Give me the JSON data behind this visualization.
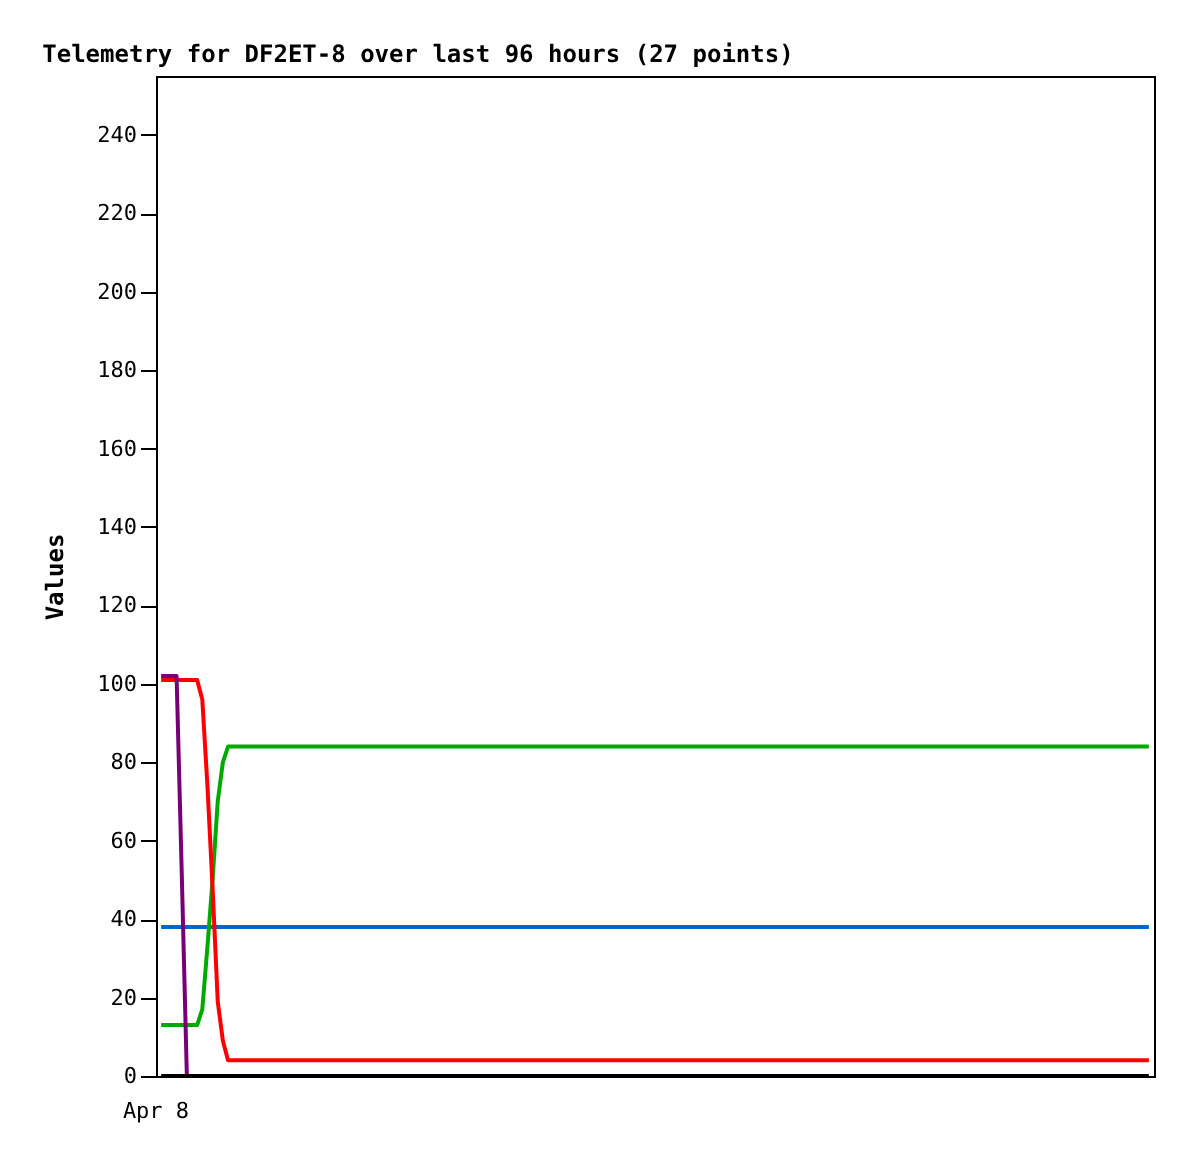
{
  "chart_data": {
    "type": "line",
    "title": "Telemetry for DF2ET-8 over last 96 hours (27 points)",
    "ylabel": "Values",
    "annotations": [
      "Apr 8"
    ],
    "categories": [
      null,
      null,
      null,
      null,
      null,
      null,
      null,
      null,
      null,
      null,
      null,
      null,
      null,
      null,
      null,
      null,
      null,
      null,
      null,
      null,
      null,
      null,
      null,
      null,
      null,
      null,
      null,
      null,
      null,
      null,
      null,
      null,
      null,
      null,
      null,
      null,
      null,
      null,
      null,
      null,
      null,
      null,
      null,
      null,
      null,
      null,
      null,
      null,
      null,
      null,
      null,
      null,
      null,
      null,
      null,
      null,
      null,
      null,
      null,
      null,
      null,
      null,
      null,
      null,
      null,
      null,
      null,
      null,
      null,
      null,
      null,
      null,
      null,
      null,
      null,
      null,
      null,
      null,
      null,
      null,
      null,
      null,
      null,
      null,
      null,
      null,
      null,
      null,
      null,
      null,
      null,
      null,
      null,
      null,
      null,
      null,
      null,
      null,
      null,
      null,
      null,
      null,
      null,
      null,
      null,
      null,
      null,
      null,
      null,
      null,
      null,
      null,
      null,
      null,
      null,
      null,
      null,
      null,
      null,
      null,
      null,
      null,
      null,
      null,
      null,
      null,
      null,
      null,
      null,
      null,
      null,
      null,
      null,
      null,
      null,
      null,
      null,
      null,
      null,
      null,
      null,
      null,
      null,
      null,
      null,
      null,
      null,
      null,
      null,
      null,
      null,
      null,
      null,
      null,
      null,
      null,
      null,
      null,
      null,
      null,
      null,
      null,
      null,
      null,
      null,
      null,
      null,
      null,
      null,
      null,
      null,
      null,
      null,
      null,
      null,
      null,
      null,
      null,
      null,
      null,
      null,
      null,
      null,
      null,
      null,
      null,
      null,
      null,
      null,
      null,
      null,
      null,
      null
    ],
    "ylim": [
      0,
      255
    ],
    "yticks": [
      0,
      20,
      40,
      60,
      80,
      100,
      120,
      140,
      160,
      180,
      200,
      220,
      240
    ],
    "series": [
      {
        "color": "#0066cc",
        "values": [
          38,
          38,
          38,
          38,
          38,
          38,
          38,
          38,
          38,
          38,
          38,
          38,
          38,
          38,
          38,
          38,
          38,
          38,
          38,
          38,
          38,
          38,
          38,
          38,
          38,
          38,
          38,
          38,
          38,
          38,
          38,
          38,
          38,
          38,
          38,
          38,
          38,
          38,
          38,
          38,
          38,
          38,
          38,
          38,
          38,
          38,
          38,
          38,
          38,
          38,
          38,
          38,
          38,
          38,
          38,
          38,
          38,
          38,
          38,
          38,
          38,
          38,
          38,
          38,
          38,
          38,
          38,
          38,
          38,
          38,
          38,
          38,
          38,
          38,
          38,
          38,
          38,
          38,
          38,
          38,
          38,
          38,
          38,
          38,
          38,
          38,
          38,
          38,
          38,
          38,
          38,
          38,
          38,
          38,
          38,
          38,
          38,
          38,
          38,
          38,
          38,
          38,
          38,
          38,
          38,
          38,
          38,
          38,
          38,
          38,
          38,
          38,
          38,
          38,
          38,
          38,
          38,
          38,
          38,
          38,
          38,
          38,
          38,
          38,
          38,
          38,
          38,
          38,
          38,
          38,
          38,
          38,
          38,
          38,
          38,
          38,
          38,
          38,
          38,
          38,
          38,
          38,
          38,
          38,
          38,
          38,
          38,
          38,
          38,
          38,
          38,
          38,
          38,
          38,
          38,
          38,
          38,
          38,
          38,
          38,
          38,
          38,
          38,
          38,
          38,
          38,
          38,
          38,
          38,
          38,
          38,
          38,
          38,
          38,
          38,
          38,
          38,
          38,
          38,
          38,
          38,
          38,
          38,
          38,
          38,
          38,
          38,
          38,
          38,
          38,
          38,
          38,
          38
        ]
      },
      {
        "color": "#00aa00",
        "values": [
          13,
          13,
          13,
          13,
          13,
          13,
          13,
          13,
          17,
          33,
          50,
          70,
          80,
          84,
          84,
          84,
          84,
          84,
          84,
          84,
          84,
          84,
          84,
          84,
          84,
          84,
          84,
          84,
          84,
          84,
          84,
          84,
          84,
          84,
          84,
          84,
          84,
          84,
          84,
          84,
          84,
          84,
          84,
          84,
          84,
          84,
          84,
          84,
          84,
          84,
          84,
          84,
          84,
          84,
          84,
          84,
          84,
          84,
          84,
          84,
          84,
          84,
          84,
          84,
          84,
          84,
          84,
          84,
          84,
          84,
          84,
          84,
          84,
          84,
          84,
          84,
          84,
          84,
          84,
          84,
          84,
          84,
          84,
          84,
          84,
          84,
          84,
          84,
          84,
          84,
          84,
          84,
          84,
          84,
          84,
          84,
          84,
          84,
          84,
          84,
          84,
          84,
          84,
          84,
          84,
          84,
          84,
          84,
          84,
          84,
          84,
          84,
          84,
          84,
          84,
          84,
          84,
          84,
          84,
          84,
          84,
          84,
          84,
          84,
          84,
          84,
          84,
          84,
          84,
          84,
          84,
          84,
          84,
          84,
          84,
          84,
          84,
          84,
          84,
          84,
          84,
          84,
          84,
          84,
          84,
          84,
          84,
          84,
          84,
          84,
          84,
          84,
          84,
          84,
          84,
          84,
          84,
          84,
          84,
          84,
          84,
          84,
          84,
          84,
          84,
          84,
          84,
          84,
          84,
          84,
          84,
          84,
          84,
          84,
          84,
          84,
          84,
          84,
          84,
          84,
          84,
          84,
          84,
          84,
          84,
          84,
          84,
          84,
          84,
          84,
          84,
          84,
          84
        ]
      },
      {
        "color": "#ff0000",
        "values": [
          101,
          101,
          101,
          101,
          101,
          101,
          101,
          101,
          96,
          74,
          48,
          19,
          9,
          4,
          4,
          4,
          4,
          4,
          4,
          4,
          4,
          4,
          4,
          4,
          4,
          4,
          4,
          4,
          4,
          4,
          4,
          4,
          4,
          4,
          4,
          4,
          4,
          4,
          4,
          4,
          4,
          4,
          4,
          4,
          4,
          4,
          4,
          4,
          4,
          4,
          4,
          4,
          4,
          4,
          4,
          4,
          4,
          4,
          4,
          4,
          4,
          4,
          4,
          4,
          4,
          4,
          4,
          4,
          4,
          4,
          4,
          4,
          4,
          4,
          4,
          4,
          4,
          4,
          4,
          4,
          4,
          4,
          4,
          4,
          4,
          4,
          4,
          4,
          4,
          4,
          4,
          4,
          4,
          4,
          4,
          4,
          4,
          4,
          4,
          4,
          4,
          4,
          4,
          4,
          4,
          4,
          4,
          4,
          4,
          4,
          4,
          4,
          4,
          4,
          4,
          4,
          4,
          4,
          4,
          4,
          4,
          4,
          4,
          4,
          4,
          4,
          4,
          4,
          4,
          4,
          4,
          4,
          4,
          4,
          4,
          4,
          4,
          4,
          4,
          4,
          4,
          4,
          4,
          4,
          4,
          4,
          4,
          4,
          4,
          4,
          4,
          4,
          4,
          4,
          4,
          4,
          4,
          4,
          4,
          4,
          4,
          4,
          4,
          4,
          4,
          4,
          4,
          4,
          4,
          4,
          4,
          4,
          4,
          4,
          4,
          4,
          4,
          4,
          4,
          4,
          4,
          4,
          4,
          4,
          4,
          4,
          4,
          4,
          4,
          4,
          4,
          4,
          4
        ]
      },
      {
        "color": "#770077",
        "values": [
          102,
          102,
          102,
          102,
          52,
          0,
          null,
          null,
          null,
          null,
          null,
          null,
          null,
          null,
          null,
          null,
          null,
          null,
          null,
          null,
          null,
          null,
          null,
          null,
          null,
          null,
          null,
          null,
          null,
          null,
          null,
          null,
          null,
          null,
          null,
          null,
          null,
          null,
          null,
          null,
          null,
          null,
          null,
          null,
          null,
          null,
          null,
          null,
          null,
          null,
          null,
          null,
          null,
          null,
          null,
          null,
          null,
          null,
          null,
          null,
          null,
          null,
          null,
          null,
          null,
          null,
          null,
          null,
          null,
          null,
          null,
          null,
          null,
          null,
          null,
          null,
          null,
          null,
          null,
          null,
          null,
          null,
          null,
          null,
          null,
          null,
          null,
          null,
          null,
          null,
          null,
          null,
          null,
          null,
          null,
          null,
          null,
          null,
          null,
          null,
          null,
          null,
          null,
          null,
          null,
          null,
          null,
          null,
          null,
          null,
          null,
          null,
          null,
          null,
          null,
          null,
          null,
          null,
          null,
          null,
          null,
          null,
          null,
          null,
          null,
          null,
          null,
          null,
          null,
          null,
          null,
          null,
          null,
          null,
          null,
          null,
          null,
          null,
          null,
          null,
          null,
          null,
          null,
          null,
          null,
          null,
          null,
          null,
          null,
          null,
          null,
          null,
          null,
          null,
          null,
          null,
          null,
          null,
          null,
          null,
          null,
          null,
          null,
          null,
          null,
          null,
          null,
          null,
          null,
          null,
          null,
          null,
          null,
          null,
          null,
          null,
          null,
          null,
          null,
          null,
          null,
          null,
          null,
          null,
          null,
          null,
          null,
          null,
          null,
          null,
          null,
          null,
          null
        ]
      },
      {
        "color": "#000000",
        "values": [
          0,
          0,
          0,
          0,
          0,
          0,
          0,
          0,
          0,
          0,
          0,
          0,
          0,
          0,
          0,
          0,
          0,
          0,
          0,
          0,
          0,
          0,
          0,
          0,
          0,
          0,
          0,
          0,
          0,
          0,
          0,
          0,
          0,
          0,
          0,
          0,
          0,
          0,
          0,
          0,
          0,
          0,
          0,
          0,
          0,
          0,
          0,
          0,
          0,
          0,
          0,
          0,
          0,
          0,
          0,
          0,
          0,
          0,
          0,
          0,
          0,
          0,
          0,
          0,
          0,
          0,
          0,
          0,
          0,
          0,
          0,
          0,
          0,
          0,
          0,
          0,
          0,
          0,
          0,
          0,
          0,
          0,
          0,
          0,
          0,
          0,
          0,
          0,
          0,
          0,
          0,
          0,
          0,
          0,
          0,
          0,
          0,
          0,
          0,
          0,
          0,
          0,
          0,
          0,
          0,
          0,
          0,
          0,
          0,
          0,
          0,
          0,
          0,
          0,
          0,
          0,
          0,
          0,
          0,
          0,
          0,
          0,
          0,
          0,
          0,
          0,
          0,
          0,
          0,
          0,
          0,
          0,
          0,
          0,
          0,
          0,
          0,
          0,
          0,
          0,
          0,
          0,
          0,
          0,
          0,
          0,
          0,
          0,
          0,
          0,
          0,
          0,
          0,
          0,
          0,
          0,
          0,
          0,
          0,
          0,
          0,
          0,
          0,
          0,
          0,
          0,
          0,
          0,
          0,
          0,
          0,
          0,
          0,
          0,
          0,
          0,
          0,
          0,
          0,
          0,
          0,
          0,
          0,
          0,
          0,
          0,
          0,
          0,
          0,
          0,
          0,
          0,
          0
        ]
      }
    ]
  }
}
